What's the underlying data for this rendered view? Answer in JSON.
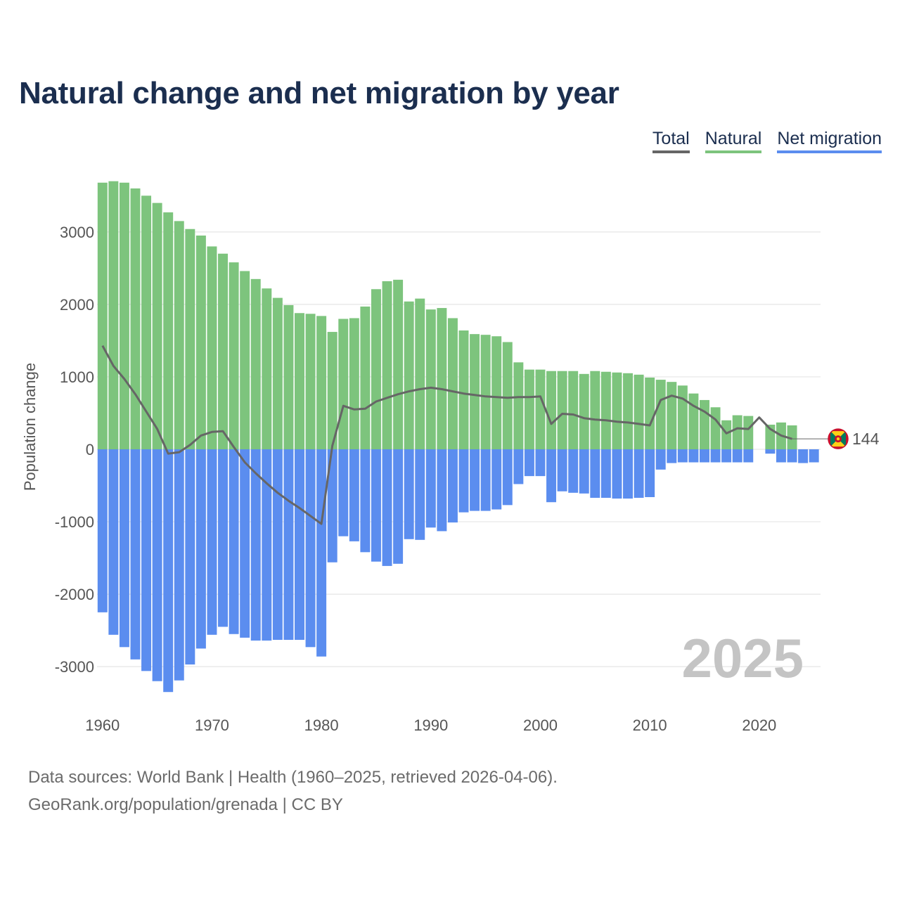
{
  "title": "Natural change and net migration by year",
  "legend": {
    "total": "Total",
    "natural": "Natural",
    "migration": "Net migration"
  },
  "colors": {
    "natural": "#7dc47d",
    "migration": "#5b8def",
    "total": "#666666",
    "grid": "#e6e6e6"
  },
  "source": {
    "line1": "Data sources: World Bank | Health (1960–2025, retrieved 2026-04-06).",
    "line2": "GeoRank.org/population/grenada | CC BY"
  },
  "chart_data": {
    "type": "bar",
    "title": "Natural change and net migration by year",
    "ylabel": "Population change",
    "xlabel": "",
    "ylim": [
      -3600,
      3750
    ],
    "xlim": [
      1959.5,
      2025.6
    ],
    "yticks": [
      3000,
      2000,
      1000,
      0,
      -1000,
      -2000,
      -3000
    ],
    "xticks": [
      1960,
      1970,
      1980,
      1990,
      2000,
      2010,
      2020
    ],
    "current_year_label": "2025",
    "end_label": "144",
    "years": [
      1960,
      1961,
      1962,
      1963,
      1964,
      1965,
      1966,
      1967,
      1968,
      1969,
      1970,
      1971,
      1972,
      1973,
      1974,
      1975,
      1976,
      1977,
      1978,
      1979,
      1980,
      1981,
      1982,
      1983,
      1984,
      1985,
      1986,
      1987,
      1988,
      1989,
      1990,
      1991,
      1992,
      1993,
      1994,
      1995,
      1996,
      1997,
      1998,
      1999,
      2000,
      2001,
      2002,
      2003,
      2004,
      2005,
      2006,
      2007,
      2008,
      2009,
      2010,
      2011,
      2012,
      2013,
      2014,
      2015,
      2016,
      2017,
      2018,
      2019,
      2020,
      2021,
      2022,
      2023,
      2024,
      2025
    ],
    "series": [
      {
        "name": "Natural",
        "values": [
          3680,
          3700,
          3680,
          3600,
          3500,
          3400,
          3270,
          3150,
          3040,
          2950,
          2800,
          2700,
          2580,
          2460,
          2350,
          2220,
          2090,
          1990,
          1880,
          1870,
          1840,
          1620,
          1800,
          1810,
          1970,
          2210,
          2320,
          2340,
          2040,
          2080,
          1930,
          1950,
          1810,
          1640,
          1590,
          1580,
          1560,
          1480,
          1200,
          1100,
          1100,
          1080,
          1080,
          1080,
          1040,
          1080,
          1070,
          1060,
          1050,
          1030,
          990,
          960,
          930,
          880,
          770,
          680,
          580,
          400,
          470,
          460,
          0,
          340,
          370,
          330,
          0,
          0
        ]
      },
      {
        "name": "Net migration",
        "values": [
          -2250,
          -2560,
          -2730,
          -2900,
          -3060,
          -3200,
          -3350,
          -3190,
          -2970,
          -2750,
          -2560,
          -2450,
          -2550,
          -2600,
          -2640,
          -2640,
          -2630,
          -2630,
          -2630,
          -2730,
          -2860,
          -1560,
          -1200,
          -1270,
          -1420,
          -1550,
          -1610,
          -1580,
          -1240,
          -1250,
          -1080,
          -1130,
          -1010,
          -870,
          -850,
          -850,
          -830,
          -770,
          -480,
          -370,
          -370,
          -730,
          -580,
          -600,
          -610,
          -670,
          -670,
          -680,
          -680,
          -670,
          -660,
          -280,
          -190,
          -180,
          -180,
          -180,
          -180,
          -180,
          -180,
          -180,
          0,
          -60,
          -180,
          -180,
          -190,
          -180
        ]
      },
      {
        "name": "Total",
        "values": [
          1430,
          1150,
          970,
          760,
          520,
          280,
          -60,
          -40,
          60,
          190,
          240,
          250,
          30,
          -180,
          -330,
          -470,
          -600,
          -710,
          -810,
          -920,
          -1030,
          50,
          600,
          550,
          560,
          660,
          710,
          760,
          800,
          830,
          850,
          830,
          800,
          770,
          750,
          730,
          720,
          710,
          720,
          720,
          730,
          350,
          490,
          480,
          430,
          410,
          400,
          380,
          370,
          350,
          330,
          680,
          740,
          700,
          600,
          520,
          410,
          220,
          290,
          280,
          440,
          280,
          190,
          144,
          null,
          null
        ]
      }
    ]
  }
}
